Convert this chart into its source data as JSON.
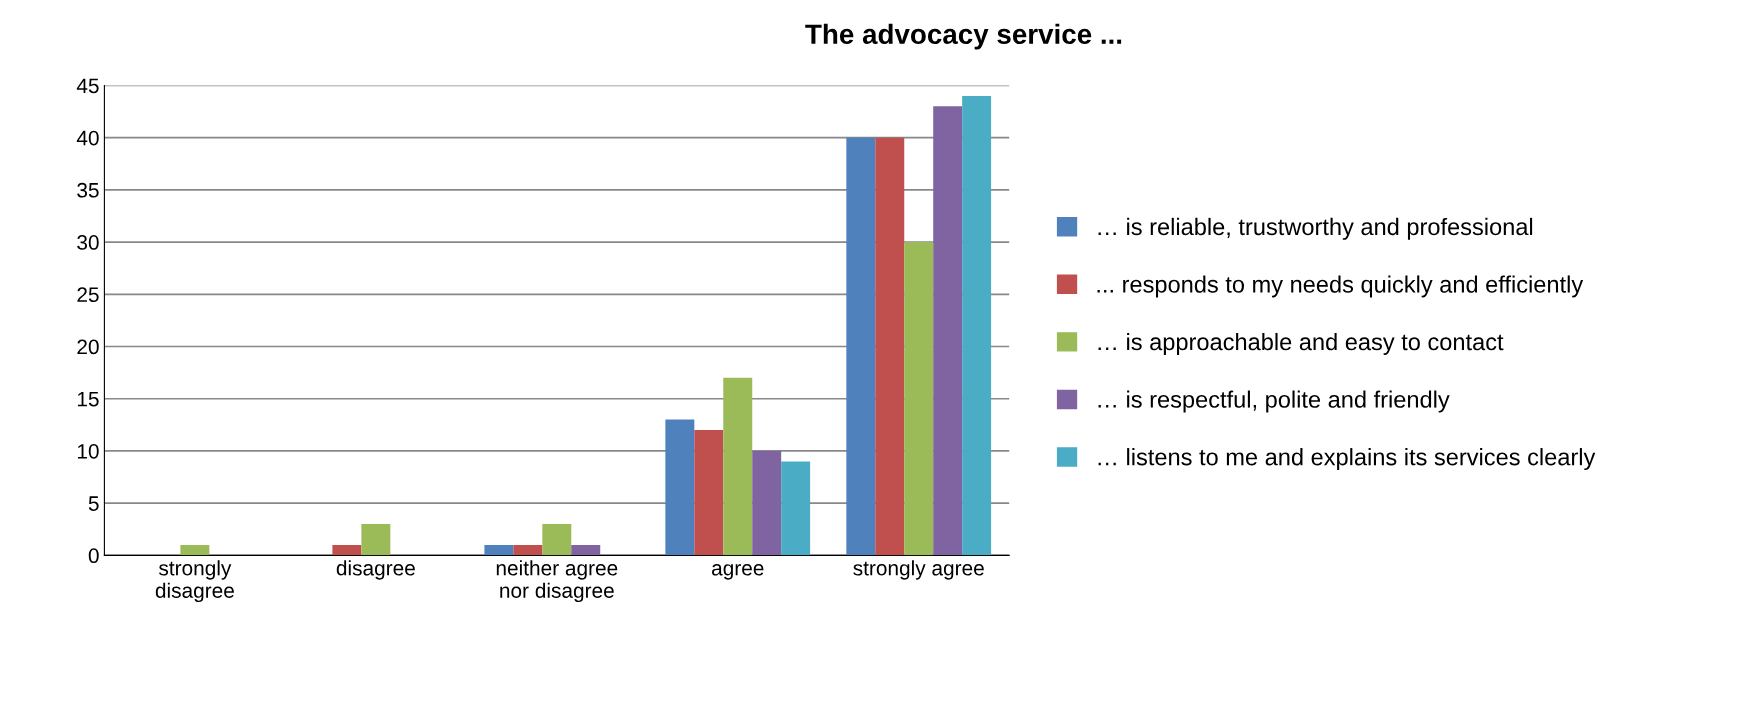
{
  "chart_data": {
    "type": "bar",
    "title": "The advocacy service ...",
    "categories": [
      "strongly\ndisagree",
      "disagree",
      "neither agree\nnor disagree",
      "agree",
      "strongly agree"
    ],
    "series": [
      {
        "name": "… is reliable, trustworthy and professional",
        "color": "#4f81bd",
        "values": [
          0,
          0,
          1,
          13,
          40
        ]
      },
      {
        "name": "... responds to my needs quickly and efficiently",
        "color": "#c0504d",
        "values": [
          0,
          1,
          1,
          12,
          40
        ]
      },
      {
        "name": "… is approachable and easy to contact",
        "color": "#9bbb59",
        "values": [
          1,
          3,
          3,
          17,
          30
        ]
      },
      {
        "name": "… is respectful, polite and friendly",
        "color": "#8064a2",
        "values": [
          0,
          0,
          1,
          10,
          43
        ]
      },
      {
        "name": "… listens to me and explains its services clearly",
        "color": "#4bacc6",
        "values": [
          0,
          0,
          0,
          9,
          44
        ]
      }
    ],
    "ylim": [
      0,
      45
    ],
    "yticks": [
      0,
      5,
      10,
      15,
      20,
      25,
      30,
      35,
      40,
      45
    ],
    "grid": "y",
    "legend": "right"
  }
}
